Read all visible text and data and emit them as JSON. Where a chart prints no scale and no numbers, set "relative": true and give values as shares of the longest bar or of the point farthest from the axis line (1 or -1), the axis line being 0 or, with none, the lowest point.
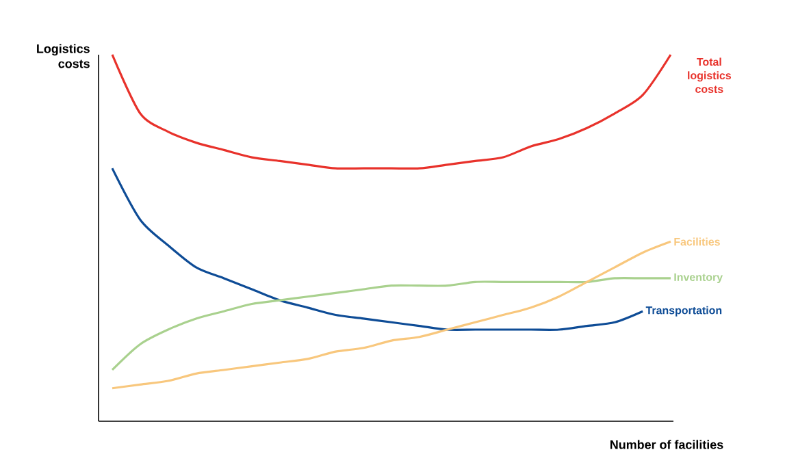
{
  "chart_data": {
    "type": "line",
    "relative": true,
    "xlabel": "Number of facilities",
    "ylabel": "Logistics costs",
    "categories": [
      null,
      null,
      null,
      null,
      null,
      null,
      null,
      null,
      null,
      null,
      null,
      null,
      null,
      null,
      null,
      null,
      null,
      null,
      null,
      null,
      null
    ],
    "series": [
      {
        "name": "Total logistics costs",
        "color": "#e8322b",
        "values": [
          1.0,
          0.84,
          0.79,
          0.76,
          0.74,
          0.72,
          0.71,
          0.7,
          0.69,
          0.69,
          0.69,
          0.69,
          0.7,
          0.71,
          0.72,
          0.75,
          0.77,
          0.8,
          0.84,
          0.89,
          1.0
        ]
      },
      {
        "name": "Transportation",
        "color": "#0e4c96",
        "values": [
          0.69,
          0.55,
          0.48,
          0.42,
          0.39,
          0.36,
          0.33,
          0.31,
          0.29,
          0.28,
          0.27,
          0.26,
          0.25,
          0.25,
          0.25,
          0.25,
          0.25,
          0.26,
          0.27,
          0.3,
          null
        ]
      },
      {
        "name": "Inventory",
        "color": "#a9d18e",
        "values": [
          0.14,
          0.21,
          0.25,
          0.28,
          0.3,
          0.32,
          0.33,
          0.34,
          0.35,
          0.36,
          0.37,
          0.37,
          0.37,
          0.38,
          0.38,
          0.38,
          0.38,
          0.38,
          0.39,
          0.39,
          0.39
        ]
      },
      {
        "name": "Facilities",
        "color": "#f8c77d",
        "values": [
          0.09,
          0.1,
          0.11,
          0.13,
          0.14,
          0.15,
          0.16,
          0.17,
          0.19,
          0.2,
          0.22,
          0.23,
          0.25,
          0.27,
          0.29,
          0.31,
          0.34,
          0.38,
          0.42,
          0.46,
          0.49
        ]
      }
    ]
  }
}
